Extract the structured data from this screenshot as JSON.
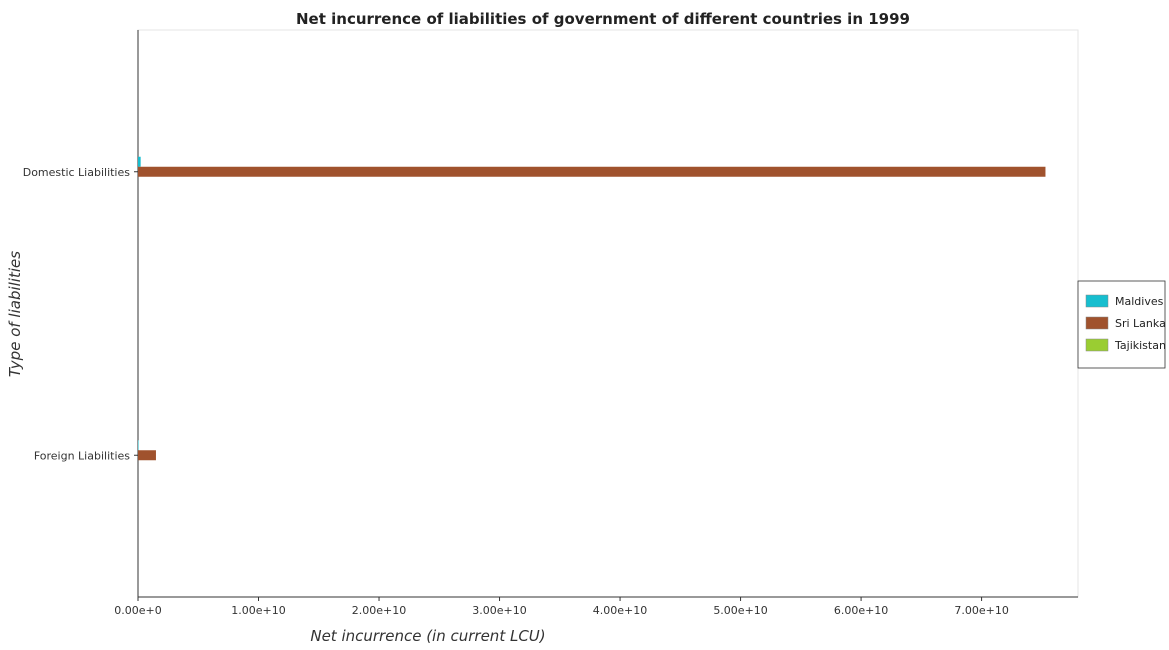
{
  "chart_data": {
    "type": "bar",
    "orientation": "horizontal",
    "title": "Net incurrence of liabilities of government of different countries in 1999",
    "xlabel": "Net incurrence (in current LCU)",
    "ylabel": "Type of liabilities",
    "categories": [
      "Domestic Liabilities",
      "Foreign Liabilities"
    ],
    "series": [
      {
        "name": "Maldives",
        "color": "#17becf",
        "values": [
          220000000,
          40000000
        ]
      },
      {
        "name": "Sri Lanka",
        "color": "#a0522d",
        "values": [
          75300000000,
          1490000000
        ]
      },
      {
        "name": "Tajikistan",
        "color": "#9acd32",
        "values": [
          0,
          0
        ]
      }
    ],
    "xlim": [
      0,
      78000000000
    ],
    "xticks": [
      0,
      10000000000,
      20000000000,
      30000000000,
      40000000000,
      50000000000,
      60000000000,
      70000000000
    ],
    "xtick_labels": [
      "0.00e+0",
      "1.00e+10",
      "2.00e+10",
      "3.00e+10",
      "4.00e+10",
      "5.00e+10",
      "6.00e+10",
      "7.00e+10"
    ],
    "grid": false,
    "legend_position": "right"
  }
}
